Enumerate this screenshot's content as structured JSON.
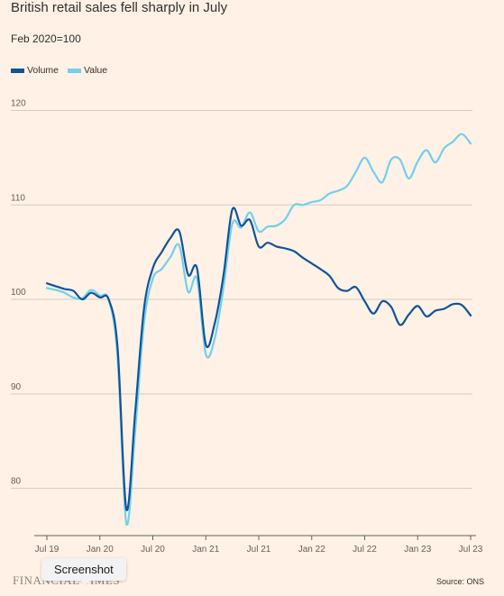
{
  "header": {
    "title": "British retail sales fell sharply in July",
    "subtitle": "Feb 2020=100"
  },
  "footer": {
    "logo": "FINANCIAL TIMES",
    "source": "Source: ONS"
  },
  "tooltip": {
    "label": "Screenshot"
  },
  "colors": {
    "background": "#fff1e5",
    "volume": "#0f5499",
    "value": "#70d0ec",
    "gridline": "#d7c9bd"
  },
  "chart_data": {
    "type": "line",
    "title": "British retail sales fell sharply in July",
    "subtitle": "Feb 2020=100",
    "xlabel": "",
    "ylabel": "",
    "ylim": [
      75,
      121
    ],
    "yticks": [
      80,
      90,
      100,
      110,
      120
    ],
    "xticks": [
      "Jul 19",
      "Jan 20",
      "Jul 20",
      "Jan 21",
      "Jul 21",
      "Jan 22",
      "Jul 22",
      "Jan 23",
      "Jul 23"
    ],
    "grid": true,
    "legend": "top-left",
    "x": [
      "2019-07",
      "2019-08",
      "2019-09",
      "2019-10",
      "2019-11",
      "2019-12",
      "2020-01",
      "2020-02",
      "2020-03",
      "2020-04",
      "2020-05",
      "2020-06",
      "2020-07",
      "2020-08",
      "2020-09",
      "2020-10",
      "2020-11",
      "2020-12",
      "2021-01",
      "2021-02",
      "2021-03",
      "2021-04",
      "2021-05",
      "2021-06",
      "2021-07",
      "2021-08",
      "2021-09",
      "2021-10",
      "2021-11",
      "2021-12",
      "2022-01",
      "2022-02",
      "2022-03",
      "2022-04",
      "2022-05",
      "2022-06",
      "2022-07",
      "2022-08",
      "2022-09",
      "2022-10",
      "2022-11",
      "2022-12",
      "2023-01",
      "2023-02",
      "2023-03",
      "2023-04",
      "2023-05",
      "2023-06",
      "2023-07"
    ],
    "series": [
      {
        "name": "Volume",
        "color": "#0f5499",
        "values": [
          101.7,
          101.4,
          101.1,
          100.9,
          100.0,
          100.7,
          100.2,
          100.0,
          95.0,
          77.8,
          88.0,
          99.0,
          103.3,
          105.0,
          106.5,
          107.2,
          102.6,
          103.3,
          95.2,
          97.4,
          102.5,
          109.5,
          107.8,
          108.4,
          105.6,
          106.0,
          105.6,
          105.4,
          105.1,
          104.4,
          103.8,
          103.2,
          102.5,
          101.2,
          100.9,
          101.3,
          99.8,
          98.5,
          99.8,
          99.2,
          97.3,
          98.4,
          99.3,
          98.2,
          98.8,
          99.0,
          99.5,
          99.4,
          98.3
        ]
      },
      {
        "name": "Value",
        "color": "#70d0ec",
        "values": [
          101.2,
          101.0,
          100.7,
          100.2,
          100.1,
          101.0,
          100.4,
          100.0,
          94.0,
          76.3,
          86.0,
          97.5,
          102.2,
          103.2,
          104.5,
          105.7,
          100.8,
          102.2,
          94.2,
          95.8,
          101.2,
          108.0,
          107.6,
          109.2,
          107.2,
          107.7,
          107.8,
          108.5,
          110.0,
          110.0,
          110.3,
          110.5,
          111.2,
          111.5,
          112.0,
          113.5,
          115.0,
          113.5,
          112.4,
          114.8,
          114.8,
          112.8,
          114.6,
          115.8,
          114.5,
          116.0,
          116.7,
          117.5,
          116.5
        ]
      }
    ]
  }
}
